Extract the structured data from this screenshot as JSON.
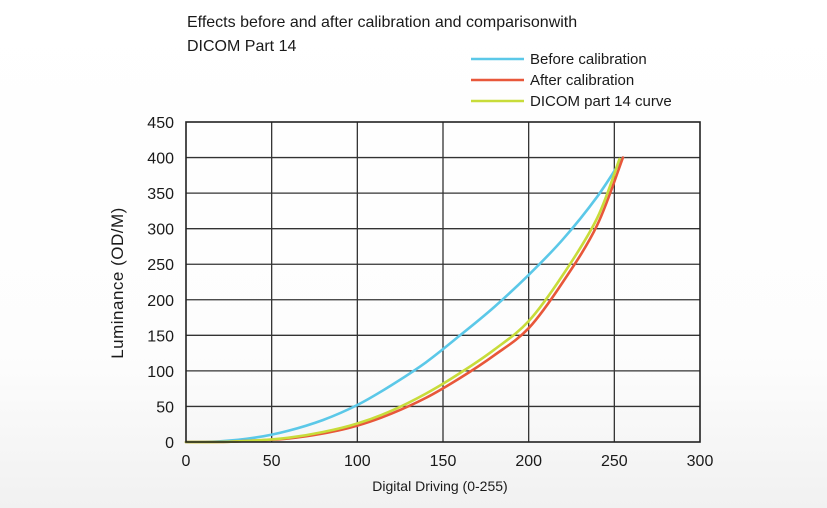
{
  "chart_data": {
    "type": "line",
    "title_lines": [
      "Effects before and after calibration and comparisonwith",
      "DICOM Part 14"
    ],
    "xlabel": "Digital Driving (0-255)",
    "ylabel": "Luminance (OD/M)",
    "xlim": [
      0,
      300
    ],
    "ylim": [
      0,
      450
    ],
    "xticks": [
      "0",
      "50",
      "100",
      "150",
      "200",
      "250",
      "300"
    ],
    "yticks": [
      "0",
      "50",
      "100",
      "150",
      "200",
      "250",
      "300",
      "350",
      "400",
      "450"
    ],
    "grid": true,
    "legend_position": "top-right",
    "series": [
      {
        "name": "Before calibration",
        "color": "#5bc8e8",
        "x": [
          0,
          20,
          40,
          60,
          80,
          100,
          120,
          140,
          160,
          180,
          200,
          220,
          240,
          255
        ],
        "y": [
          0,
          1,
          6,
          16,
          31,
          52,
          80,
          112,
          150,
          190,
          235,
          285,
          345,
          400
        ]
      },
      {
        "name": "After calibration",
        "color": "#e8573a",
        "x": [
          0,
          20,
          40,
          60,
          80,
          100,
          120,
          140,
          160,
          180,
          200,
          220,
          240,
          255
        ],
        "y": [
          0,
          0,
          2,
          5,
          12,
          23,
          40,
          62,
          90,
          122,
          160,
          225,
          305,
          400
        ]
      },
      {
        "name": "DICOM part 14 curve",
        "color": "#c8dc3a",
        "x": [
          0,
          20,
          40,
          60,
          80,
          100,
          120,
          140,
          160,
          180,
          200,
          220,
          240,
          253
        ],
        "y": [
          0,
          0,
          2,
          6,
          14,
          26,
          44,
          68,
          97,
          130,
          170,
          235,
          315,
          398
        ]
      }
    ]
  }
}
